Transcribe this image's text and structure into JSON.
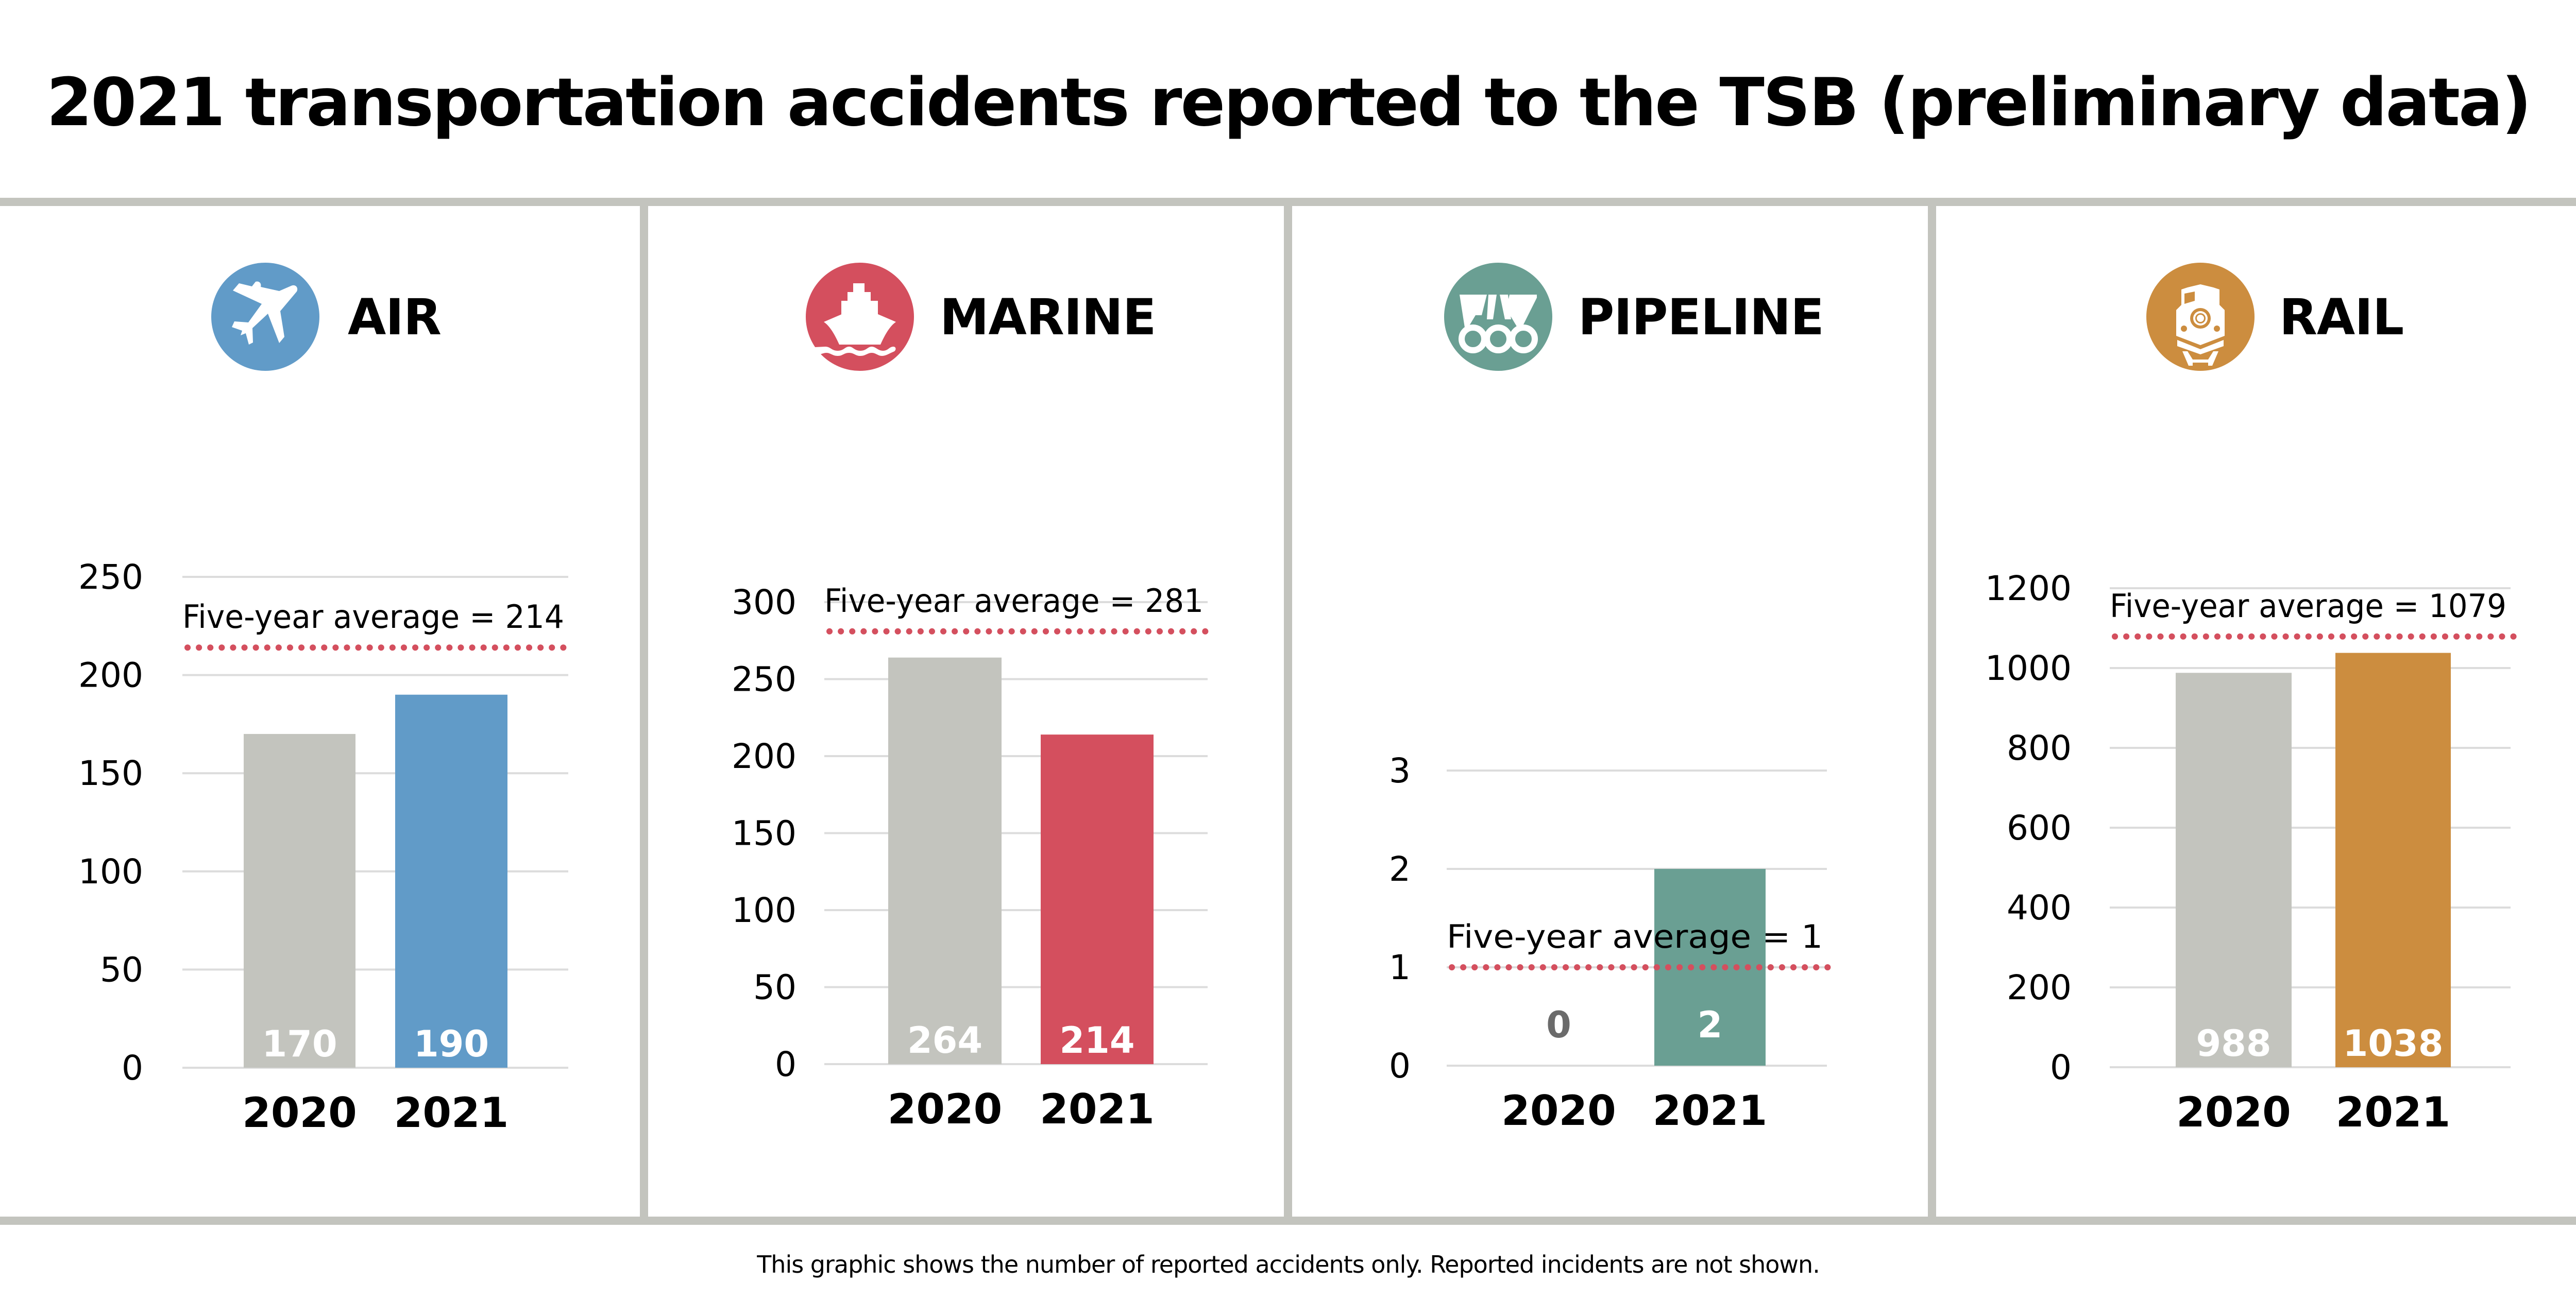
{
  "title": "2021 transportation accidents reported to the TSB (preliminary data)",
  "footnote": "This graphic shows the number of reported accidents only. Reported incidents are not shown.",
  "colors": {
    "baseline_bar": "#c3c4be",
    "average_line": "#d44f5e",
    "grid": "#dcdcdc",
    "divider": "#c3c4be"
  },
  "panels": [
    {
      "mode": "AIR",
      "icon": "airplane-icon",
      "color": "#619bc8"
    },
    {
      "mode": "MARINE",
      "icon": "ship-icon",
      "color": "#d44f5e"
    },
    {
      "mode": "PIPELINE",
      "icon": "pipeline-icon",
      "color": "#6a9f93"
    },
    {
      "mode": "RAIL",
      "icon": "train-icon",
      "color": "#cc8d3f"
    }
  ],
  "chart_data": [
    {
      "type": "bar",
      "title": "AIR",
      "categories": [
        "2020",
        "2021"
      ],
      "values": [
        170,
        190
      ],
      "value_labels": [
        "170",
        "190"
      ],
      "ylim": [
        0,
        250
      ],
      "yticks": [
        0,
        50,
        100,
        150,
        200,
        250
      ],
      "five_year_average": 214,
      "average_label": "Five-year average = 214",
      "grid": true
    },
    {
      "type": "bar",
      "title": "MARINE",
      "categories": [
        "2020",
        "2021"
      ],
      "values": [
        264,
        214
      ],
      "value_labels": [
        "264",
        "214"
      ],
      "ylim": [
        0,
        300
      ],
      "yticks": [
        0,
        50,
        100,
        150,
        200,
        250,
        300
      ],
      "five_year_average": 281,
      "average_label": "Five-year average = 281",
      "grid": true
    },
    {
      "type": "bar",
      "title": "PIPELINE",
      "categories": [
        "2020",
        "2021"
      ],
      "values": [
        0,
        2
      ],
      "value_labels": [
        "0",
        "2"
      ],
      "ylim": [
        0,
        3
      ],
      "yticks": [
        0,
        1,
        2,
        3
      ],
      "five_year_average": 1,
      "average_label": "Five-year average = 1",
      "grid": true
    },
    {
      "type": "bar",
      "title": "RAIL",
      "categories": [
        "2020",
        "2021"
      ],
      "values": [
        988,
        1038
      ],
      "value_labels": [
        "988",
        "1038"
      ],
      "ylim": [
        0,
        1200
      ],
      "yticks": [
        0,
        200,
        400,
        600,
        800,
        1000,
        1200
      ],
      "five_year_average": 1079,
      "average_label": "Five-year average = 1079",
      "grid": true
    }
  ]
}
